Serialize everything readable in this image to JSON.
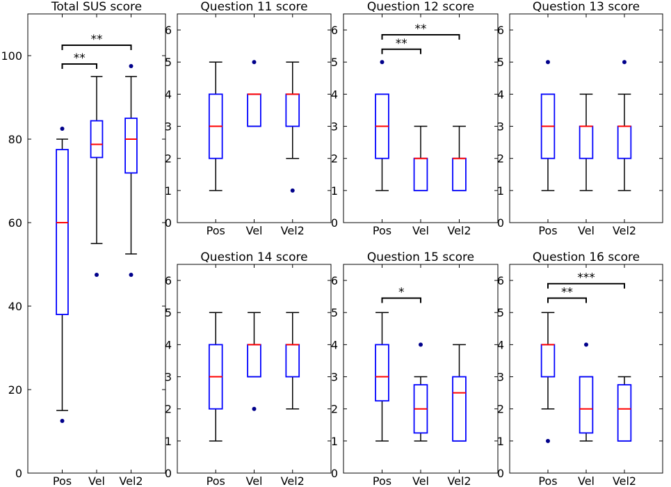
{
  "colors": {
    "box": "#0000ff",
    "median": "#ff0000",
    "whisker": "#000000",
    "flier": "#00008b"
  },
  "chart_data": [
    {
      "type": "box",
      "title": "Total SUS score",
      "categories": [
        "Pos",
        "Vel",
        "Vel2"
      ],
      "ylim": [
        0,
        110
      ],
      "yticks": [
        0,
        20,
        40,
        60,
        80,
        100
      ],
      "boxes": [
        {
          "whislo": 15,
          "q1": 38,
          "med": 60,
          "q3": 77.5,
          "whishi": 80,
          "fliers": [
            12.5,
            82.5
          ]
        },
        {
          "whislo": 55,
          "q1": 75.6,
          "med": 78.75,
          "q3": 84.4,
          "whishi": 95,
          "fliers": [
            47.5
          ]
        },
        {
          "whislo": 52.5,
          "q1": 71.9,
          "med": 80,
          "q3": 85,
          "whishi": 95,
          "fliers": [
            47.5,
            97.5
          ]
        }
      ],
      "significance": [
        {
          "from": 0,
          "to": 1,
          "y": 98,
          "label": "**"
        },
        {
          "from": 0,
          "to": 2,
          "y": 102.5,
          "label": "**"
        }
      ]
    },
    {
      "type": "box",
      "title": "Question 11 score",
      "categories": [
        "Pos",
        "Vel",
        "Vel2"
      ],
      "ylim": [
        0,
        6.5
      ],
      "yticks": [
        0,
        1,
        2,
        3,
        4,
        5,
        6
      ],
      "boxes": [
        {
          "whislo": 1,
          "q1": 2,
          "med": 3,
          "q3": 4,
          "whishi": 5,
          "fliers": []
        },
        {
          "whislo": 3,
          "q1": 3,
          "med": 4,
          "q3": 4,
          "whishi": 4,
          "fliers": [
            5
          ]
        },
        {
          "whislo": 2,
          "q1": 3,
          "med": 4,
          "q3": 4,
          "whishi": 5,
          "fliers": [
            1
          ]
        }
      ],
      "significance": []
    },
    {
      "type": "box",
      "title": "Question 12 score",
      "categories": [
        "Pos",
        "Vel",
        "Vel2"
      ],
      "ylim": [
        0,
        6.5
      ],
      "yticks": [
        0,
        1,
        2,
        3,
        4,
        5,
        6
      ],
      "boxes": [
        {
          "whislo": 1,
          "q1": 2,
          "med": 3,
          "q3": 4,
          "whishi": 4,
          "fliers": [
            5
          ]
        },
        {
          "whislo": 1,
          "q1": 1,
          "med": 2,
          "q3": 2,
          "whishi": 3,
          "fliers": []
        },
        {
          "whislo": 1,
          "q1": 1,
          "med": 2,
          "q3": 2,
          "whishi": 3,
          "fliers": []
        }
      ],
      "significance": [
        {
          "from": 0,
          "to": 1,
          "y": 5.4,
          "label": "**"
        },
        {
          "from": 0,
          "to": 2,
          "y": 5.85,
          "label": "**"
        }
      ]
    },
    {
      "type": "box",
      "title": "Question 13 score",
      "categories": [
        "Pos",
        "Vel",
        "Vel2"
      ],
      "ylim": [
        0,
        6.5
      ],
      "yticks": [
        0,
        1,
        2,
        3,
        4,
        5,
        6
      ],
      "boxes": [
        {
          "whislo": 1,
          "q1": 2,
          "med": 3,
          "q3": 4,
          "whishi": 4,
          "fliers": [
            5
          ]
        },
        {
          "whislo": 1,
          "q1": 2,
          "med": 3,
          "q3": 3,
          "whishi": 4,
          "fliers": []
        },
        {
          "whislo": 1,
          "q1": 2,
          "med": 3,
          "q3": 3,
          "whishi": 4,
          "fliers": [
            5
          ]
        }
      ],
      "significance": []
    },
    {
      "type": "box",
      "title": "Question 14 score",
      "categories": [
        "Pos",
        "Vel",
        "Vel2"
      ],
      "ylim": [
        0,
        6.5
      ],
      "yticks": [
        0,
        1,
        2,
        3,
        4,
        5,
        6
      ],
      "boxes": [
        {
          "whislo": 1,
          "q1": 2,
          "med": 3,
          "q3": 4,
          "whishi": 5,
          "fliers": []
        },
        {
          "whislo": 3,
          "q1": 3,
          "med": 4,
          "q3": 4,
          "whishi": 5,
          "fliers": [
            2
          ]
        },
        {
          "whislo": 2,
          "q1": 3,
          "med": 4,
          "q3": 4,
          "whishi": 5,
          "fliers": []
        }
      ],
      "significance": []
    },
    {
      "type": "box",
      "title": "Question 15 score",
      "categories": [
        "Pos",
        "Vel",
        "Vel2"
      ],
      "ylim": [
        0,
        6.5
      ],
      "yticks": [
        0,
        1,
        2,
        3,
        4,
        5,
        6
      ],
      "boxes": [
        {
          "whislo": 1,
          "q1": 2.25,
          "med": 3,
          "q3": 4,
          "whishi": 5,
          "fliers": []
        },
        {
          "whislo": 1,
          "q1": 1.25,
          "med": 2,
          "q3": 2.75,
          "whishi": 3,
          "fliers": [
            4
          ]
        },
        {
          "whislo": 1,
          "q1": 1,
          "med": 2.5,
          "q3": 3,
          "whishi": 4,
          "fliers": []
        }
      ],
      "significance": [
        {
          "from": 0,
          "to": 1,
          "y": 5.45,
          "label": "*"
        }
      ]
    },
    {
      "type": "box",
      "title": "Question 16 score",
      "categories": [
        "Pos",
        "Vel",
        "Vel2"
      ],
      "ylim": [
        0,
        6.5
      ],
      "yticks": [
        0,
        1,
        2,
        3,
        4,
        5,
        6
      ],
      "boxes": [
        {
          "whislo": 2,
          "q1": 3,
          "med": 4,
          "q3": 4,
          "whishi": 5,
          "fliers": [
            1
          ]
        },
        {
          "whislo": 1,
          "q1": 1.25,
          "med": 2,
          "q3": 3,
          "whishi": 3,
          "fliers": [
            4
          ]
        },
        {
          "whislo": 1,
          "q1": 1,
          "med": 2,
          "q3": 2.75,
          "whishi": 3,
          "fliers": []
        }
      ],
      "significance": [
        {
          "from": 0,
          "to": 1,
          "y": 5.45,
          "label": "**"
        },
        {
          "from": 0,
          "to": 2,
          "y": 5.9,
          "label": "***"
        }
      ]
    }
  ]
}
